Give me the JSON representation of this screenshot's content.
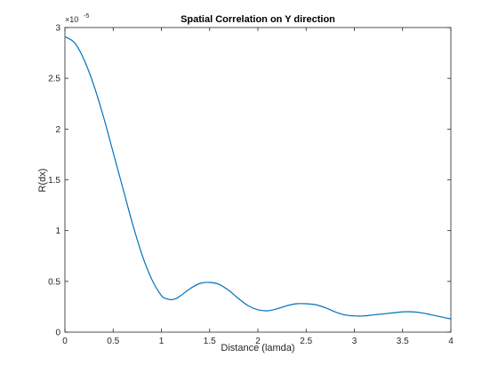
{
  "chart_data": {
    "type": "line",
    "title": "Spatial Correlation on Y direction",
    "xlabel": "Distance (lamda)",
    "ylabel": "R(dx)",
    "y_exponent_base": "×10",
    "y_exponent_power": "-5",
    "xlim": [
      0,
      4
    ],
    "ylim": [
      0,
      3
    ],
    "xticks": [
      0,
      0.5,
      1,
      1.5,
      2,
      2.5,
      3,
      3.5,
      4
    ],
    "xtick_labels": [
      "0",
      "0.5",
      "1",
      "1.5",
      "2",
      "2.5",
      "3",
      "3.5",
      "4"
    ],
    "yticks": [
      0,
      0.5,
      1,
      1.5,
      2,
      2.5,
      3
    ],
    "ytick_labels": [
      "0",
      "0.5",
      "1",
      "1.5",
      "2",
      "2.5",
      "3"
    ],
    "grid": false,
    "series": [
      {
        "color": "#0072bd",
        "x": [
          0,
          0.1,
          0.2,
          0.3,
          0.4,
          0.5,
          0.6,
          0.7,
          0.8,
          0.9,
          1.0,
          1.05,
          1.1,
          1.15,
          1.2,
          1.3,
          1.4,
          1.5,
          1.6,
          1.7,
          1.8,
          1.9,
          2.0,
          2.1,
          2.2,
          2.3,
          2.4,
          2.5,
          2.6,
          2.7,
          2.8,
          2.9,
          3.0,
          3.1,
          3.2,
          3.3,
          3.4,
          3.5,
          3.6,
          3.7,
          3.8,
          3.9,
          4.0
        ],
        "y": [
          2.91,
          2.85,
          2.68,
          2.43,
          2.12,
          1.77,
          1.42,
          1.07,
          0.76,
          0.52,
          0.36,
          0.33,
          0.32,
          0.33,
          0.36,
          0.43,
          0.48,
          0.49,
          0.47,
          0.41,
          0.33,
          0.26,
          0.22,
          0.21,
          0.23,
          0.26,
          0.28,
          0.28,
          0.27,
          0.24,
          0.2,
          0.17,
          0.16,
          0.16,
          0.17,
          0.18,
          0.19,
          0.2,
          0.2,
          0.19,
          0.17,
          0.15,
          0.13
        ]
      }
    ]
  }
}
